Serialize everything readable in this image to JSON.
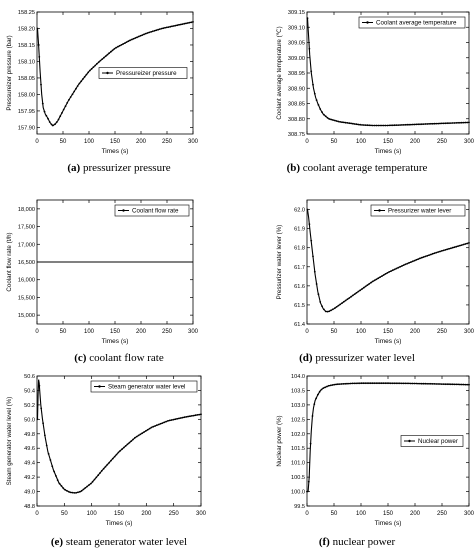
{
  "chart_data": [
    {
      "type": "line",
      "letter": "(a)",
      "caption": "pressurizer pressure",
      "xlabel": "Times (s)",
      "ylabel": "Pressureizer pressure (bar)",
      "xlim": [
        0,
        300
      ],
      "ylim": [
        157.88,
        158.25
      ],
      "xticks": [
        "0",
        "50",
        "100",
        "150",
        "200",
        "250",
        "300"
      ],
      "yticks": [
        "157.90",
        "157.95",
        "158.00",
        "158.05",
        "158.10",
        "158.15",
        "158.20",
        "158.25"
      ],
      "yticks_values": [
        157.9,
        157.95,
        158.0,
        158.05,
        158.1,
        158.15,
        158.2,
        158.25
      ],
      "legend": "Pressureizer pressure",
      "legend_position": "right-middle",
      "series": [
        {
          "name": "Pressureizer pressure",
          "x": [
            1,
            3,
            6,
            9,
            12,
            16,
            20,
            25,
            30,
            35,
            40,
            50,
            60,
            80,
            100,
            120,
            150,
            180,
            210,
            240,
            270,
            300
          ],
          "y": [
            158.2,
            158.15,
            158.07,
            158.0,
            157.96,
            157.94,
            157.93,
            157.915,
            157.905,
            157.91,
            157.92,
            157.95,
            157.98,
            158.03,
            158.07,
            158.1,
            158.14,
            158.165,
            158.185,
            158.2,
            158.21,
            158.22
          ]
        }
      ]
    },
    {
      "type": "line",
      "letter": "(b)",
      "caption": "coolant average temperature",
      "xlabel": "Times (s)",
      "ylabel": "Coolant average temperature (℃)",
      "xlim": [
        0,
        300
      ],
      "ylim": [
        308.75,
        309.15
      ],
      "xticks": [
        "0",
        "50",
        "100",
        "150",
        "200",
        "250",
        "300"
      ],
      "yticks": [
        "308.75",
        "308.80",
        "308.85",
        "308.90",
        "308.95",
        "309.00",
        "309.05",
        "309.10",
        "309.15"
      ],
      "yticks_values": [
        308.75,
        308.8,
        308.85,
        308.9,
        308.95,
        309.0,
        309.05,
        309.1,
        309.15
      ],
      "legend": "Coolant average temperature",
      "legend_position": "top-right",
      "series": [
        {
          "name": "Coolant average temperature",
          "x": [
            1,
            3,
            5,
            8,
            12,
            16,
            20,
            25,
            30,
            40,
            50,
            60,
            80,
            100,
            120,
            150,
            180,
            210,
            240,
            270,
            300
          ],
          "y": [
            309.13,
            309.07,
            309.01,
            308.95,
            308.9,
            308.87,
            308.85,
            308.83,
            308.815,
            308.8,
            308.795,
            308.79,
            308.785,
            308.78,
            308.778,
            308.778,
            308.78,
            308.782,
            308.784,
            308.786,
            308.788
          ]
        }
      ]
    },
    {
      "type": "line",
      "letter": "(c)",
      "caption": "coolant flow rate",
      "xlabel": "Times (s)",
      "ylabel": "Coolant flow rate (t/h)",
      "xlim": [
        0,
        300
      ],
      "ylim": [
        14750,
        18250
      ],
      "xticks": [
        "0",
        "50",
        "100",
        "150",
        "200",
        "250",
        "300"
      ],
      "yticks": [
        "15,000",
        "15,500",
        "16,000",
        "16,500",
        "17,000",
        "17,500",
        "18,000"
      ],
      "yticks_values": [
        15000,
        15500,
        16000,
        16500,
        17000,
        17500,
        18000
      ],
      "legend": "Coolant flow rate",
      "legend_position": "top-right",
      "series": [
        {
          "name": "Coolant flow rate",
          "x": [
            0,
            300
          ],
          "y": [
            16500,
            16500
          ]
        }
      ]
    },
    {
      "type": "line",
      "letter": "(d)",
      "caption": "pressurizer water level",
      "xlabel": "Times (s)",
      "ylabel": "Pressurizer water lever (%)",
      "xlim": [
        0,
        300
      ],
      "ylim": [
        61.4,
        62.05
      ],
      "xticks": [
        "0",
        "50",
        "100",
        "150",
        "200",
        "250",
        "300"
      ],
      "yticks": [
        "61.4",
        "61.5",
        "61.6",
        "61.7",
        "61.8",
        "61.9",
        "62.0"
      ],
      "yticks_values": [
        61.4,
        61.5,
        61.6,
        61.7,
        61.8,
        61.9,
        62.0
      ],
      "legend": "Pressurizer water lever",
      "legend_position": "top-right",
      "series": [
        {
          "name": "Pressurizer water lever",
          "x": [
            1,
            3,
            6,
            10,
            15,
            20,
            25,
            30,
            35,
            40,
            50,
            60,
            80,
            100,
            120,
            150,
            180,
            210,
            240,
            270,
            300
          ],
          "y": [
            62.0,
            61.96,
            61.88,
            61.78,
            61.66,
            61.57,
            61.51,
            61.48,
            61.465,
            61.465,
            61.48,
            61.5,
            61.54,
            61.58,
            61.62,
            61.67,
            61.71,
            61.745,
            61.775,
            61.8,
            61.825
          ]
        }
      ]
    },
    {
      "type": "line",
      "letter": "(e)",
      "caption": "steam generator water level",
      "xlabel": "Times (s)",
      "ylabel": "Steam generator water level (%)",
      "xlim": [
        0,
        300
      ],
      "ylim": [
        48.8,
        50.6
      ],
      "xticks": [
        "0",
        "50",
        "100",
        "150",
        "200",
        "250",
        "300"
      ],
      "yticks": [
        "48.8",
        "49.0",
        "49.2",
        "49.4",
        "49.6",
        "49.8",
        "50.0",
        "50.2",
        "50.4",
        "50.6"
      ],
      "yticks_values": [
        48.8,
        49.0,
        49.2,
        49.4,
        49.6,
        49.8,
        50.0,
        50.2,
        50.4,
        50.6
      ],
      "legend": "Steam generator water level",
      "legend_position": "top-right",
      "series": [
        {
          "name": "Steam generator water level",
          "x": [
            1,
            2,
            3,
            4,
            5,
            7,
            10,
            15,
            20,
            30,
            40,
            50,
            60,
            70,
            80,
            100,
            120,
            150,
            180,
            210,
            240,
            270,
            300
          ],
          "y": [
            50.0,
            50.35,
            50.55,
            50.5,
            50.4,
            50.2,
            50.0,
            49.75,
            49.55,
            49.3,
            49.12,
            49.03,
            48.99,
            48.98,
            49.0,
            49.12,
            49.3,
            49.55,
            49.75,
            49.89,
            49.98,
            50.03,
            50.07
          ]
        }
      ]
    },
    {
      "type": "line",
      "letter": "(f)",
      "caption": "nuclear power",
      "xlabel": "Times (s)",
      "ylabel": "Nuclear power (%)",
      "xlim": [
        0,
        300
      ],
      "ylim": [
        99.5,
        104.0
      ],
      "xticks": [
        "0",
        "50",
        "100",
        "150",
        "200",
        "250",
        "300"
      ],
      "yticks": [
        "99.5",
        "100.0",
        "100.5",
        "101.0",
        "101.5",
        "102.0",
        "102.5",
        "103.0",
        "103.5",
        "104.0"
      ],
      "yticks_values": [
        99.5,
        100.0,
        100.5,
        101.0,
        101.5,
        102.0,
        102.5,
        103.0,
        103.5,
        104.0
      ],
      "legend": "Nuclear power",
      "legend_position": "right-middle",
      "series": [
        {
          "name": "Nuclear power",
          "x": [
            0,
            2,
            4,
            6,
            8,
            10,
            12,
            15,
            20,
            25,
            30,
            40,
            50,
            60,
            80,
            100,
            150,
            200,
            250,
            300
          ],
          "y": [
            100.0,
            100.0,
            100.5,
            101.4,
            102.1,
            102.6,
            102.9,
            103.15,
            103.35,
            103.5,
            103.58,
            103.66,
            103.7,
            103.72,
            103.74,
            103.75,
            103.75,
            103.74,
            103.72,
            103.7
          ]
        }
      ]
    }
  ]
}
